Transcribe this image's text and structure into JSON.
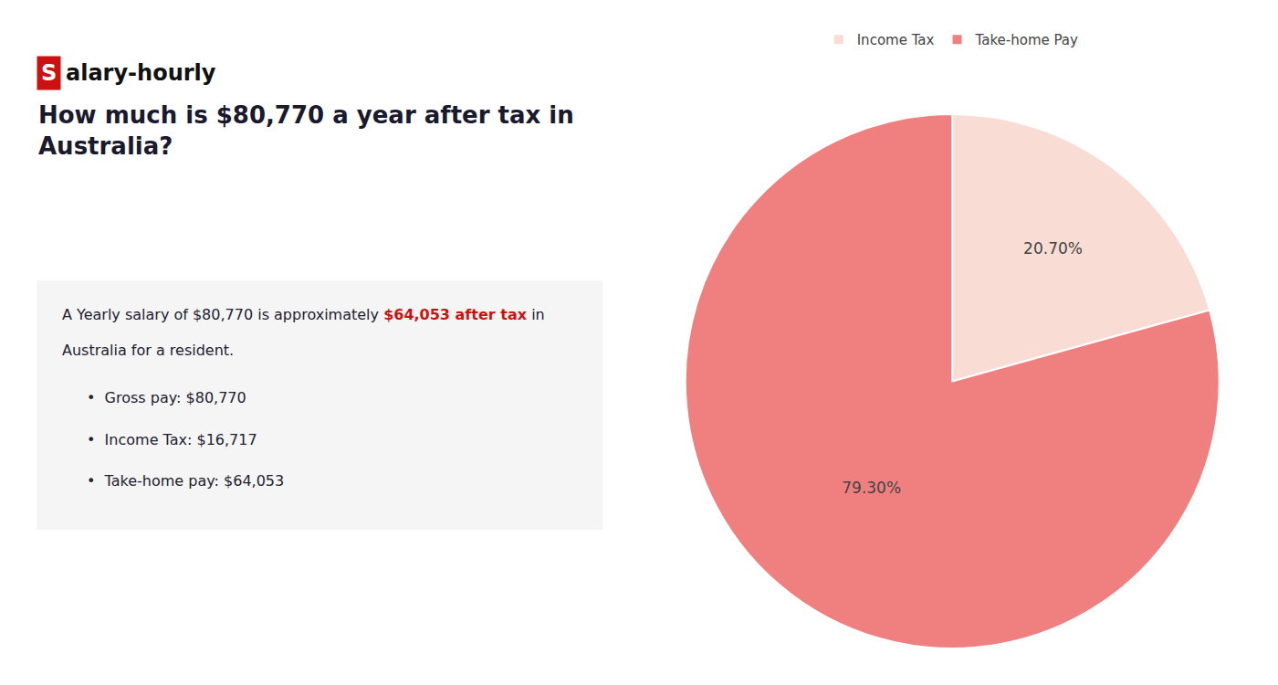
{
  "chart_data": {
    "type": "pie",
    "title": "How much is $80,770 a year after tax in Australia?",
    "categories": [
      "Income Tax",
      "Take-home Pay"
    ],
    "values": [
      20.7,
      79.3
    ],
    "value_labels": [
      "20.70%",
      "79.30%"
    ],
    "colors": [
      "#f9ddd4",
      "#f08080"
    ],
    "data_labels": true,
    "legend": "top",
    "annotations": [
      {
        "text": "S",
        "color": "#cc1111"
      },
      {
        "text": "alary-hourly"
      },
      {
        "text": "A Yearly salary of $80,770 is approximately "
      },
      {
        "text": "$64,053 after tax",
        "color": "#cc1111"
      },
      {
        "text": " in"
      },
      {
        "text": "Australia for a resident."
      },
      {
        "text": "•  Gross pay: $80,770"
      },
      {
        "text": "•  Income Tax: $16,717"
      },
      {
        "text": "•  Take-home pay: $64,053"
      }
    ]
  }
}
